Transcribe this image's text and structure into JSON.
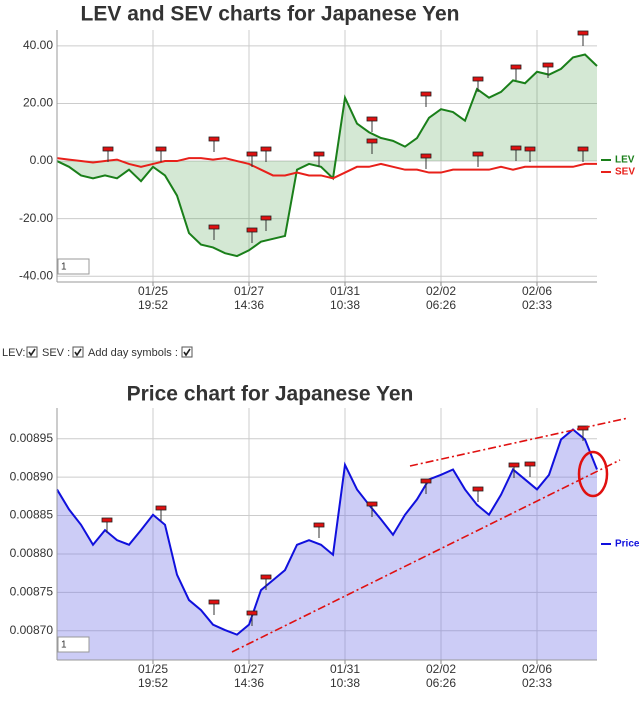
{
  "chart_data": [
    {
      "type": "line",
      "title": "LEV and SEV charts for Japanese Yen",
      "x": [
        0,
        0.125,
        0.25,
        0.375,
        0.5,
        0.625,
        0.75,
        0.875,
        1,
        1.125,
        1.25,
        1.375,
        1.5,
        1.625,
        1.75,
        1.875,
        2,
        2.125,
        2.25,
        2.375,
        2.5,
        2.625,
        2.75,
        2.875,
        3,
        3.125,
        3.25,
        3.375,
        3.5,
        3.625,
        3.75,
        3.875,
        4,
        4.125,
        4.25,
        4.375,
        4.5,
        4.625,
        4.75,
        4.875,
        5,
        5.125,
        5.25,
        5.375,
        5.5,
        5.625
      ],
      "xlim": [
        0,
        5.625
      ],
      "xticks": [
        {
          "value": 1,
          "label": "01/25 19:52"
        },
        {
          "value": 2,
          "label": "01/27 14:36"
        },
        {
          "value": 3,
          "label": "01/31 10:38"
        },
        {
          "value": 4,
          "label": "02/02 06:26"
        },
        {
          "value": 5,
          "label": "02/06 02:33"
        }
      ],
      "ylim": [
        -42,
        45.5
      ],
      "yticks": [
        {
          "value": 40,
          "label": "40.00"
        },
        {
          "value": 20,
          "label": "20.00"
        },
        {
          "value": 0,
          "label": "0.00"
        },
        {
          "value": -20,
          "label": "-20.00"
        },
        {
          "value": -40,
          "label": "-40.00"
        }
      ],
      "grid": true,
      "legend": "right",
      "input_value": "1",
      "series": [
        {
          "name": "LEV",
          "color": "#1a7f1a",
          "fill": "rgba(60,150,60,0.22)",
          "values": [
            0,
            -2,
            -5,
            -6,
            -5,
            -6,
            -3,
            -7,
            -2,
            -5,
            -12,
            -25,
            -29,
            -30,
            -32,
            -33,
            -31,
            -28,
            -27,
            -26,
            -3,
            -1,
            -2,
            -6,
            22,
            13,
            10,
            8,
            7,
            5,
            8,
            15,
            18,
            17,
            14,
            25,
            22,
            24,
            28,
            27,
            31,
            30,
            32,
            36,
            37,
            33
          ]
        },
        {
          "name": "SEV",
          "color": "#e8201a",
          "values": [
            1,
            0.5,
            0,
            -0.5,
            0,
            0.5,
            -1,
            -2,
            -1,
            0,
            0,
            1,
            1,
            0.5,
            1,
            0,
            -1,
            -3,
            -5,
            -5,
            -4,
            -5,
            -5,
            -6,
            -4,
            -2,
            -2,
            -1,
            -2,
            -3,
            -3,
            -4,
            -4,
            -3,
            -3,
            -3,
            -3,
            -2,
            -3,
            -2,
            -2,
            -2,
            -2,
            -2,
            -1,
            -1
          ]
        }
      ]
    },
    {
      "type": "line",
      "title": "Price chart for Japanese Yen",
      "x": [
        0,
        0.125,
        0.25,
        0.375,
        0.5,
        0.625,
        0.75,
        0.875,
        1,
        1.125,
        1.25,
        1.375,
        1.5,
        1.625,
        1.75,
        1.875,
        2,
        2.125,
        2.25,
        2.375,
        2.5,
        2.625,
        2.75,
        2.875,
        3,
        3.125,
        3.25,
        3.375,
        3.5,
        3.625,
        3.75,
        3.875,
        4,
        4.125,
        4.25,
        4.375,
        4.5,
        4.625,
        4.75,
        4.875,
        5,
        5.125,
        5.25,
        5.375,
        5.5,
        5.625
      ],
      "xlim": [
        0,
        5.625
      ],
      "xticks": [
        {
          "value": 1,
          "label": "01/25 19:52"
        },
        {
          "value": 2,
          "label": "01/27 14:36"
        },
        {
          "value": 3,
          "label": "01/31 10:38"
        },
        {
          "value": 4,
          "label": "02/02 06:26"
        },
        {
          "value": 5,
          "label": "02/06 02:33"
        }
      ],
      "ylim": [
        0.008662,
        0.00899
      ],
      "yticks": [
        0.00895,
        {
          "value": 0.0089,
          "label": "0.00890"
        },
        0.00885,
        {
          "value": 0.0088,
          "label": "0.00880"
        },
        0.00875,
        {
          "value": 0.0087,
          "label": "0.00870"
        }
      ],
      "grid": true,
      "legend": "right",
      "input_value": "1",
      "series": [
        {
          "name": "Price",
          "color": "#1010dd",
          "fill": "rgba(110,110,230,0.35)",
          "values": [
            0.008884,
            0.008858,
            0.008838,
            0.008812,
            0.008831,
            0.008818,
            0.008812,
            0.008831,
            0.008851,
            0.008838,
            0.008773,
            0.00874,
            0.008727,
            0.008708,
            0.008701,
            0.008695,
            0.008708,
            0.008753,
            0.008766,
            0.008779,
            0.008812,
            0.008818,
            0.008812,
            0.008799,
            0.008916,
            0.008884,
            0.008864,
            0.008845,
            0.008825,
            0.008851,
            0.008871,
            0.008897,
            0.008903,
            0.00891,
            0.008884,
            0.008864,
            0.008851,
            0.008877,
            0.00891,
            0.008897,
            0.008884,
            0.008903,
            0.008949,
            0.008962,
            0.008949,
            0.00891
          ]
        }
      ]
    }
  ],
  "controls": {
    "lev_label": "LEV:",
    "sev_label": "SEV :",
    "day_symbols_label": "Add day symbols :"
  }
}
